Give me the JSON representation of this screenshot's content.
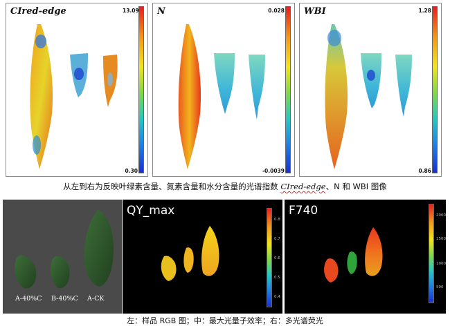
{
  "top_panels": [
    {
      "index_label": "CIred-edge",
      "scale_max": "13.09",
      "scale_min": "0.30"
    },
    {
      "index_label": "N",
      "scale_max": "0.028",
      "scale_min": "-0.0039"
    },
    {
      "index_label": "WBI",
      "scale_max": "1.28",
      "scale_min": "0.86"
    }
  ],
  "caption_top": {
    "prefix": "从左到右为反映叶绿素含量、氮素含量和水分含量的光谱指数 ",
    "index_italic": "CIred-edge",
    "suffix": "、N 和 WBI 图像"
  },
  "photo": {
    "tags": [
      "A-40%C",
      "B-40%C",
      "A-CK"
    ]
  },
  "qy_panel": {
    "title": "QY_max",
    "ticks": [
      "0.8",
      "0.7",
      "0.6",
      "0.5",
      "0.4"
    ]
  },
  "f740_panel": {
    "title": "F740",
    "ticks": [
      "2000",
      "1500",
      "1000",
      "500"
    ]
  },
  "caption_bottom": "左：样品 RGB 图；中：最大光量子效率；右：多光谱荧光",
  "colors": {
    "colormap_high": "#e81e1e",
    "colormap_mid": "#f2e41c",
    "colormap_low": "#1a2fd2",
    "photo_background": "#4a4a4a",
    "fluorescence_background": "#000000"
  }
}
